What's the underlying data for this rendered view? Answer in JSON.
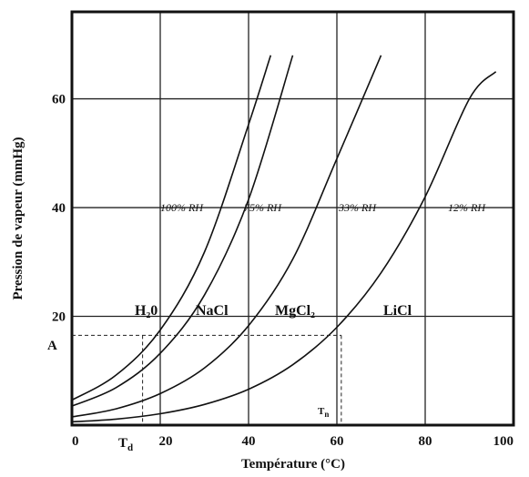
{
  "chart_data": {
    "type": "line",
    "xlabel": "Température (°C)",
    "ylabel": "Pression de vapeur (mmHg)",
    "xlim": [
      0,
      100
    ],
    "ylim": [
      0,
      76
    ],
    "x_ticks": [
      "0",
      "20",
      "40",
      "60",
      "80",
      "100"
    ],
    "y_ticks": [
      "20",
      "40",
      "60"
    ],
    "grid": true,
    "series": [
      {
        "name": "100% RH",
        "x": [
          0,
          10,
          20,
          30,
          40,
          45
        ],
        "y": [
          4.6,
          9.2,
          17.5,
          31.8,
          55.3,
          68
        ]
      },
      {
        "name": "75% RH",
        "x": [
          0,
          10,
          20,
          30,
          40,
          50
        ],
        "y": [
          3.5,
          6.9,
          13.2,
          23.9,
          41.5,
          68
        ]
      },
      {
        "name": "33% RH",
        "x": [
          0,
          10,
          20,
          30,
          40,
          50,
          60,
          70
        ],
        "y": [
          1.5,
          3.0,
          5.8,
          10.5,
          18.3,
          30.5,
          49.0,
          68
        ]
      },
      {
        "name": "12% RH",
        "x": [
          0,
          10,
          20,
          30,
          40,
          50,
          60,
          70,
          80,
          90,
          96
        ],
        "y": [
          0.6,
          1.1,
          2.1,
          3.8,
          6.6,
          11.1,
          18.0,
          28.0,
          42.0,
          60.0,
          65
        ]
      }
    ],
    "curve_labels": [
      "100% RH",
      "75% RH",
      "33% RH",
      "12% RH"
    ],
    "salt_labels": [
      "H₂0",
      "NaCl",
      "MgCl₂",
      "LiCl"
    ],
    "annotations": {
      "A": {
        "label": "A",
        "y": 16.5
      },
      "Td": {
        "label": "T",
        "sub": "d",
        "x": 16
      },
      "Tn": {
        "label": "T",
        "sub": "n",
        "x": 61
      }
    }
  }
}
